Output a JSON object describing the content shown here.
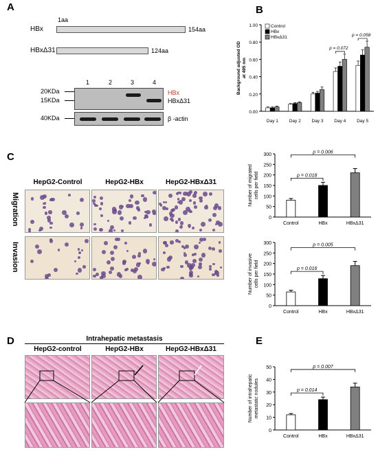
{
  "panel_a": {
    "letter": "A",
    "start_label": "1aa",
    "constructs": [
      {
        "name": "HBx",
        "end_label": "154aa"
      },
      {
        "name": "HBxΔ31",
        "end_label": "124aa"
      }
    ],
    "lanes": [
      "1",
      "2",
      "3",
      "4"
    ],
    "markers": [
      "20KDa",
      "15KDa",
      "40KDa"
    ],
    "band_labels": [
      "HBx",
      "HBxΔ31",
      "β -actin"
    ]
  },
  "panel_b": {
    "letter": "B"
  },
  "panel_c": {
    "letter": "C",
    "columns": [
      "HepG2-Control",
      "HepG2-HBx",
      "HepG2-HBxΔ31"
    ],
    "rows": [
      "Migration",
      "Invasion"
    ]
  },
  "panel_d": {
    "letter": "D",
    "title": "Intrahepatic metastasis",
    "columns": [
      "HepG2-control",
      "HepG2-HBx",
      "HepG2-HBxΔ31"
    ]
  },
  "panel_e": {
    "letter": "E"
  },
  "colors": {
    "control": "#ffffff",
    "hbx": "#000000",
    "hbxd31": "#808080",
    "violet": "#6b4a8c",
    "pink": "#e8a9c6"
  },
  "chart_data": [
    {
      "id": "B",
      "type": "bar",
      "categories": [
        "Day 1",
        "Day 2",
        "Day 3",
        "Day 4",
        "Day 5"
      ],
      "series": [
        {
          "name": "Control",
          "values": [
            0.04,
            0.08,
            0.2,
            0.46,
            0.53
          ],
          "errors": [
            0.01,
            0.01,
            0.02,
            0.04,
            0.05
          ]
        },
        {
          "name": "HBx",
          "values": [
            0.04,
            0.09,
            0.21,
            0.52,
            0.65
          ],
          "errors": [
            0.01,
            0.01,
            0.02,
            0.05,
            0.06
          ]
        },
        {
          "name": "HBxΔ31",
          "values": [
            0.05,
            0.1,
            0.25,
            0.6,
            0.74
          ],
          "errors": [
            0.01,
            0.01,
            0.03,
            0.06,
            0.07
          ]
        }
      ],
      "ylabel": "Background adjusted OD at 495 nm",
      "ylim": [
        0,
        1
      ],
      "yticks": [
        "0.00",
        "0.20",
        "0.40",
        "0.60",
        "0.80",
        "1.00"
      ],
      "annotations": [
        {
          "text": "p = 0.072",
          "category": "Day 4"
        },
        {
          "text": "p = 0.058",
          "category": "Day 5"
        }
      ],
      "legend": "top-left"
    },
    {
      "id": "C-migration",
      "type": "bar",
      "categories": [
        "Control",
        "HBx",
        "HBxΔ31"
      ],
      "values": [
        80,
        150,
        210
      ],
      "errors": [
        8,
        15,
        20
      ],
      "ylabel": "Number of migrated cells per field",
      "ylim": [
        0,
        300
      ],
      "yticks": [
        "0",
        "50",
        "100",
        "150",
        "200",
        "250",
        "300"
      ],
      "annotations": [
        {
          "text": "p = 0.018",
          "from": "Control",
          "to": "HBx"
        },
        {
          "text": "p = 0.006",
          "from": "Control",
          "to": "HBxΔ31"
        }
      ]
    },
    {
      "id": "C-invasion",
      "type": "bar",
      "categories": [
        "Control",
        "HBx",
        "HBxΔ31"
      ],
      "values": [
        65,
        128,
        190
      ],
      "errors": [
        8,
        15,
        20
      ],
      "ylabel": "Number of invasive cells per field",
      "ylim": [
        0,
        300
      ],
      "yticks": [
        "0",
        "50",
        "100",
        "150",
        "200",
        "250",
        "300"
      ],
      "annotations": [
        {
          "text": "p = 0.016",
          "from": "Control",
          "to": "HBx"
        },
        {
          "text": "p = 0.005",
          "from": "Control",
          "to": "HBxΔ31"
        }
      ]
    },
    {
      "id": "E",
      "type": "bar",
      "categories": [
        "Control",
        "HBx",
        "HBxΔ31"
      ],
      "values": [
        12,
        24,
        34
      ],
      "errors": [
        1,
        2,
        3
      ],
      "ylabel": "Number of intrahepatic metastatic nodules",
      "ylim": [
        0,
        50
      ],
      "yticks": [
        "0",
        "10",
        "20",
        "30",
        "40",
        "50"
      ],
      "annotations": [
        {
          "text": "p = 0.014",
          "from": "Control",
          "to": "HBx"
        },
        {
          "text": "p = 0.007",
          "from": "Control",
          "to": "HBxΔ31"
        }
      ]
    }
  ]
}
